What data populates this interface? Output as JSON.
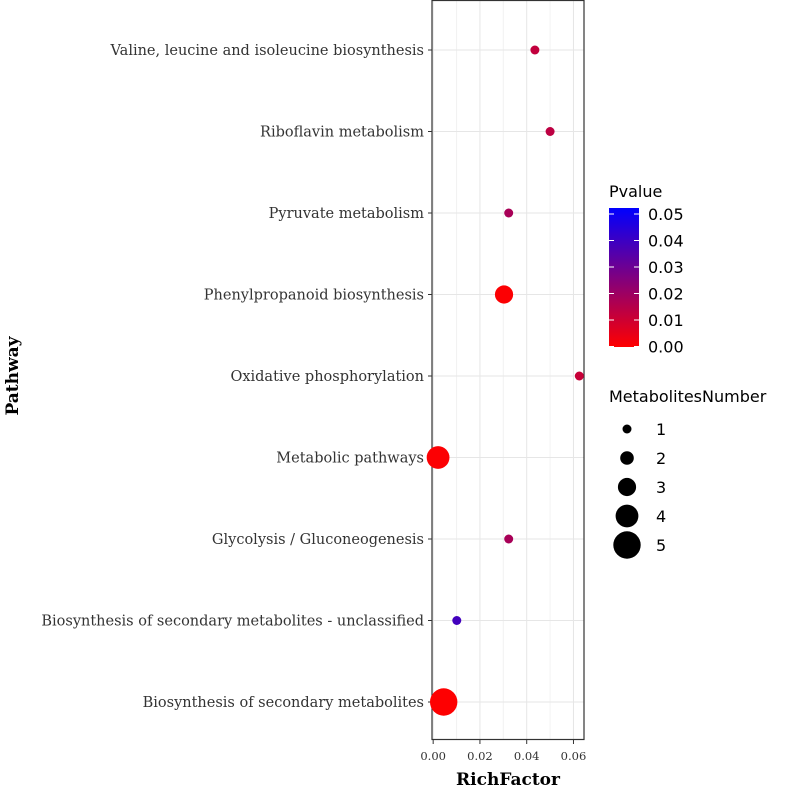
{
  "chart_data": {
    "type": "scatter",
    "title": "",
    "xlabel": "RichFactor",
    "ylabel": "Pathway",
    "xlim": [
      -0.0005,
      0.0645
    ],
    "xticks": [
      0.0,
      0.02,
      0.04,
      0.06
    ],
    "xtick_labels": [
      "0.00",
      "0.02",
      "0.04",
      "0.06"
    ],
    "grid": true,
    "categories": [
      "Valine, leucine and isoleucine biosynthesis",
      "Riboflavin metabolism",
      "Pyruvate metabolism",
      "Phenylpropanoid biosynthesis",
      "Oxidative phosphorylation",
      "Metabolic pathways",
      "Glycolysis / Gluconeogenesis",
      "Biosynthesis of secondary metabolites - unclassified",
      "Biosynthesis of secondary metabolites"
    ],
    "points": [
      {
        "pathway": "Valine, leucine and isoleucine biosynthesis",
        "rich_factor": 0.0435,
        "pvalue": 0.012,
        "metabolites_number": 1
      },
      {
        "pathway": "Riboflavin metabolism",
        "rich_factor": 0.05,
        "pvalue": 0.013,
        "metabolites_number": 1
      },
      {
        "pathway": "Pyruvate metabolism",
        "rich_factor": 0.0323,
        "pvalue": 0.017,
        "metabolites_number": 1
      },
      {
        "pathway": "Phenylpropanoid biosynthesis",
        "rich_factor": 0.0303,
        "pvalue": 0.0005,
        "metabolites_number": 3
      },
      {
        "pathway": "Oxidative phosphorylation",
        "rich_factor": 0.0625,
        "pvalue": 0.011,
        "metabolites_number": 1
      },
      {
        "pathway": "Metabolic pathways",
        "rich_factor": 0.0021,
        "pvalue": 0.0005,
        "metabolites_number": 4
      },
      {
        "pathway": "Glycolysis / Gluconeogenesis",
        "rich_factor": 0.0323,
        "pvalue": 0.017,
        "metabolites_number": 1
      },
      {
        "pathway": "Biosynthesis of secondary metabolites - unclassified",
        "rich_factor": 0.0101,
        "pvalue": 0.037,
        "metabolites_number": 1
      },
      {
        "pathway": "Biosynthesis of secondary metabolites",
        "rich_factor": 0.0045,
        "pvalue": 0.0001,
        "metabolites_number": 5
      }
    ],
    "color_legend": {
      "title": "Pvalue",
      "low_color": "#ff0000",
      "high_color": "#0000ff",
      "range": [
        0.0,
        0.05
      ],
      "ticks": [
        "0.05",
        "0.04",
        "0.03",
        "0.02",
        "0.01",
        "0.00"
      ]
    },
    "size_legend": {
      "title": "MetabolitesNumber",
      "values": [
        1,
        2,
        3,
        4,
        5
      ]
    },
    "legend_position": "right"
  }
}
